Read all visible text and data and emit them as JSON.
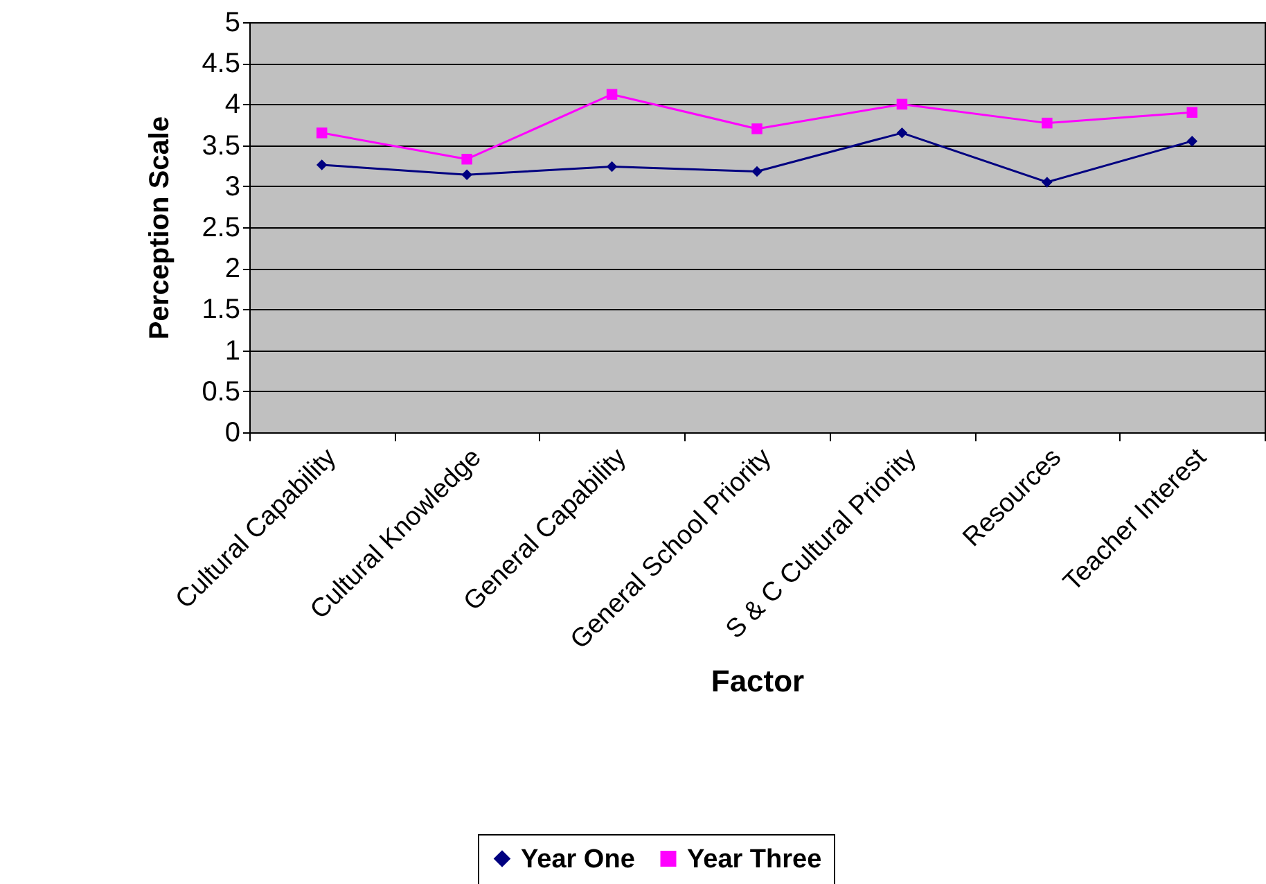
{
  "chart_data": {
    "type": "line",
    "xlabel": "Factor",
    "ylabel": "Perception Scale",
    "categories": [
      "Cultural Capability",
      "Cultural Knowledge",
      "General Capability",
      "General School Priority",
      "S & C Cultural Priority",
      "Resources",
      "Teacher Interest"
    ],
    "series": [
      {
        "name": "Year One",
        "color": "#000080",
        "marker": "diamond",
        "values": [
          3.26,
          3.14,
          3.24,
          3.18,
          3.65,
          3.05,
          3.55
        ]
      },
      {
        "name": "Year Three",
        "color": "#ff00ff",
        "marker": "square",
        "values": [
          3.65,
          3.33,
          4.12,
          3.7,
          4.0,
          3.77,
          3.9
        ]
      }
    ],
    "ylim": [
      0,
      5
    ],
    "yticks": [
      0,
      0.5,
      1,
      1.5,
      2,
      2.5,
      3,
      3.5,
      4,
      4.5,
      5
    ],
    "grid": "y",
    "legend": "bottom",
    "line_style": "solid"
  }
}
